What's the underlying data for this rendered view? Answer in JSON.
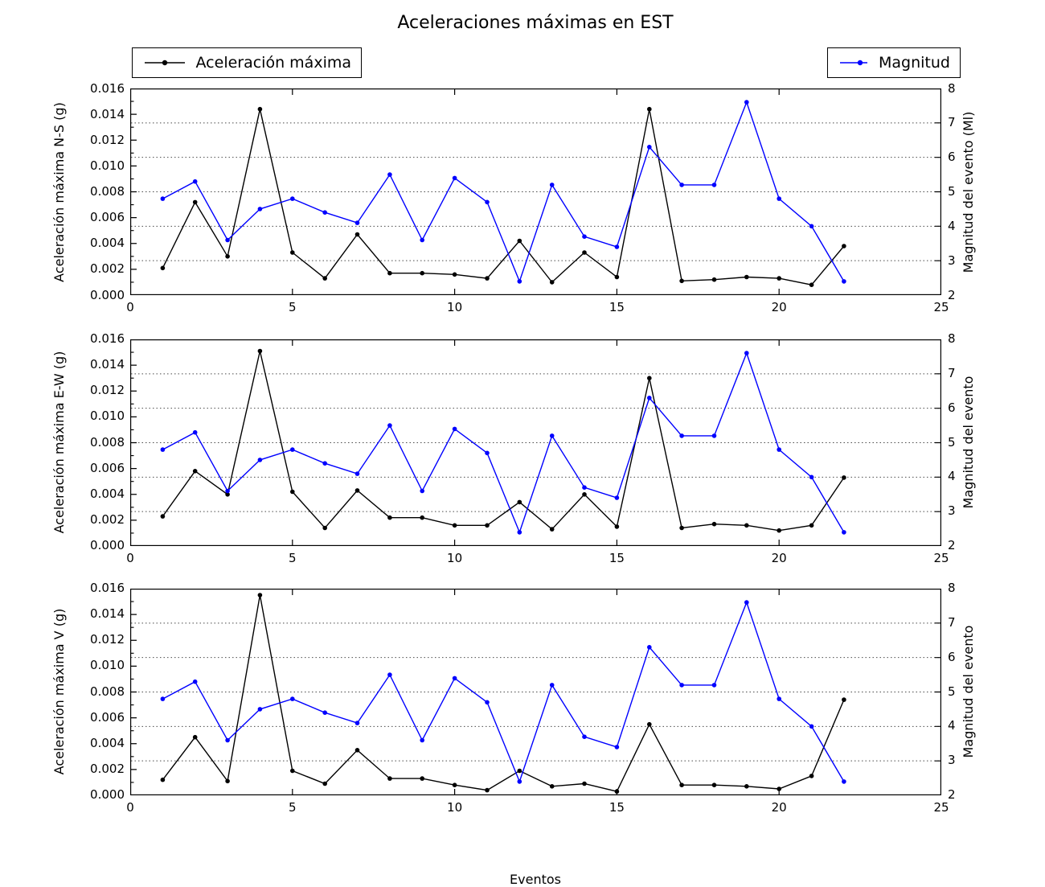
{
  "title": "Aceleraciones máximas en EST",
  "xlabel": "Eventos",
  "legend": {
    "accel_label": "Aceleración máxima",
    "mag_label": "Magnitud"
  },
  "colors": {
    "accel": "#000000",
    "magnitude": "#0000ff",
    "grid": "#4a4a4a",
    "frame": "#000000"
  },
  "chart_data": [
    {
      "type": "line",
      "ylabel_left": "Aceleración máxima N-S (g)",
      "ylabel_right": "Magnitud del evento (Ml)",
      "xlim": [
        0,
        25
      ],
      "ylim_left": [
        0,
        0.016
      ],
      "ylim_right": [
        2,
        8
      ],
      "x_ticks": [
        "0",
        "5",
        "10",
        "15",
        "20",
        "25"
      ],
      "x_tick_values": [
        0,
        5,
        10,
        15,
        20,
        25
      ],
      "y_left_ticks": [
        "0.000",
        "0.002",
        "0.004",
        "0.006",
        "0.008",
        "0.010",
        "0.012",
        "0.014",
        "0.016"
      ],
      "y_left_tick_values": [
        0,
        0.002,
        0.004,
        0.006,
        0.008,
        0.01,
        0.012,
        0.014,
        0.016
      ],
      "y_right_ticks": [
        "2",
        "3",
        "4",
        "5",
        "6",
        "7",
        "8"
      ],
      "y_right_tick_values": [
        2,
        3,
        4,
        5,
        6,
        7,
        8
      ],
      "grid": {
        "axis": "y-right",
        "values": [
          3,
          4,
          5,
          6,
          7
        ],
        "style": "dotted"
      },
      "x": [
        1,
        2,
        3,
        4,
        5,
        6,
        7,
        8,
        9,
        10,
        11,
        12,
        13,
        14,
        15,
        16,
        17,
        18,
        19,
        20,
        21,
        22
      ],
      "series": [
        {
          "name": "Aceleración máxima",
          "axis": "left",
          "color": "#000000",
          "values": [
            0.0021,
            0.0072,
            0.003,
            0.0144,
            0.0033,
            0.0013,
            0.0047,
            0.0017,
            0.0017,
            0.0016,
            0.0013,
            0.0042,
            0.001,
            0.0033,
            0.0014,
            0.0144,
            0.0011,
            0.0012,
            0.0014,
            0.0013,
            0.0008,
            0.0038
          ]
        },
        {
          "name": "Magnitud",
          "axis": "right",
          "color": "#0000ff",
          "values": [
            4.8,
            5.3,
            3.6,
            4.5,
            4.8,
            4.4,
            4.1,
            5.5,
            3.6,
            5.4,
            4.7,
            2.4,
            5.2,
            3.7,
            3.4,
            6.3,
            5.2,
            5.2,
            7.6,
            4.8,
            4.0,
            2.4
          ]
        }
      ]
    },
    {
      "type": "line",
      "ylabel_left": "Aceleración máxima E-W (g)",
      "ylabel_right": "Magnitud del evento",
      "xlim": [
        0,
        25
      ],
      "ylim_left": [
        0,
        0.016
      ],
      "ylim_right": [
        2,
        8
      ],
      "x_ticks": [
        "0",
        "5",
        "10",
        "15",
        "20",
        "25"
      ],
      "x_tick_values": [
        0,
        5,
        10,
        15,
        20,
        25
      ],
      "y_left_ticks": [
        "0.000",
        "0.002",
        "0.004",
        "0.006",
        "0.008",
        "0.010",
        "0.012",
        "0.014",
        "0.016"
      ],
      "y_left_tick_values": [
        0,
        0.002,
        0.004,
        0.006,
        0.008,
        0.01,
        0.012,
        0.014,
        0.016
      ],
      "y_right_ticks": [
        "2",
        "3",
        "4",
        "5",
        "6",
        "7",
        "8"
      ],
      "y_right_tick_values": [
        2,
        3,
        4,
        5,
        6,
        7,
        8
      ],
      "grid": {
        "axis": "y-right",
        "values": [
          3,
          4,
          5,
          6,
          7
        ],
        "style": "dotted"
      },
      "x": [
        1,
        2,
        3,
        4,
        5,
        6,
        7,
        8,
        9,
        10,
        11,
        12,
        13,
        14,
        15,
        16,
        17,
        18,
        19,
        20,
        21,
        22
      ],
      "series": [
        {
          "name": "Aceleración máxima",
          "axis": "left",
          "color": "#000000",
          "values": [
            0.0023,
            0.0058,
            0.004,
            0.0151,
            0.0042,
            0.0014,
            0.0043,
            0.0022,
            0.0022,
            0.0016,
            0.0016,
            0.0034,
            0.0013,
            0.004,
            0.0015,
            0.013,
            0.0014,
            0.0017,
            0.0016,
            0.0012,
            0.0016,
            0.0053
          ]
        },
        {
          "name": "Magnitud",
          "axis": "right",
          "color": "#0000ff",
          "values": [
            4.8,
            5.3,
            3.6,
            4.5,
            4.8,
            4.4,
            4.1,
            5.5,
            3.6,
            5.4,
            4.7,
            2.4,
            5.2,
            3.7,
            3.4,
            6.3,
            5.2,
            5.2,
            7.6,
            4.8,
            4.0,
            2.4
          ]
        }
      ]
    },
    {
      "type": "line",
      "ylabel_left": "Aceleración máxima V (g)",
      "ylabel_right": "Magnitud del evento",
      "xlim": [
        0,
        25
      ],
      "ylim_left": [
        0,
        0.016
      ],
      "ylim_right": [
        2,
        8
      ],
      "x_ticks": [
        "0",
        "5",
        "10",
        "15",
        "20",
        "25"
      ],
      "x_tick_values": [
        0,
        5,
        10,
        15,
        20,
        25
      ],
      "y_left_ticks": [
        "0.000",
        "0.002",
        "0.004",
        "0.006",
        "0.008",
        "0.010",
        "0.012",
        "0.014",
        "0.016"
      ],
      "y_left_tick_values": [
        0,
        0.002,
        0.004,
        0.006,
        0.008,
        0.01,
        0.012,
        0.014,
        0.016
      ],
      "y_right_ticks": [
        "2",
        "3",
        "4",
        "5",
        "6",
        "7",
        "8"
      ],
      "y_right_tick_values": [
        2,
        3,
        4,
        5,
        6,
        7,
        8
      ],
      "grid": {
        "axis": "y-right",
        "values": [
          3,
          4,
          5,
          6,
          7
        ],
        "style": "dotted"
      },
      "x": [
        1,
        2,
        3,
        4,
        5,
        6,
        7,
        8,
        9,
        10,
        11,
        12,
        13,
        14,
        15,
        16,
        17,
        18,
        19,
        20,
        21,
        22
      ],
      "series": [
        {
          "name": "Aceleración máxima",
          "axis": "left",
          "color": "#000000",
          "values": [
            0.0012,
            0.0045,
            0.0011,
            0.0155,
            0.0019,
            0.0009,
            0.0035,
            0.0013,
            0.0013,
            0.0008,
            0.0004,
            0.0019,
            0.0007,
            0.0009,
            0.0003,
            0.0055,
            0.0008,
            0.0008,
            0.0007,
            0.0005,
            0.0015,
            0.0074
          ]
        },
        {
          "name": "Magnitud",
          "axis": "right",
          "color": "#0000ff",
          "values": [
            4.8,
            5.3,
            3.6,
            4.5,
            4.8,
            4.4,
            4.1,
            5.5,
            3.6,
            5.4,
            4.7,
            2.4,
            5.2,
            3.7,
            3.4,
            6.3,
            5.2,
            5.2,
            7.6,
            4.8,
            4.0,
            2.4
          ]
        }
      ]
    }
  ]
}
